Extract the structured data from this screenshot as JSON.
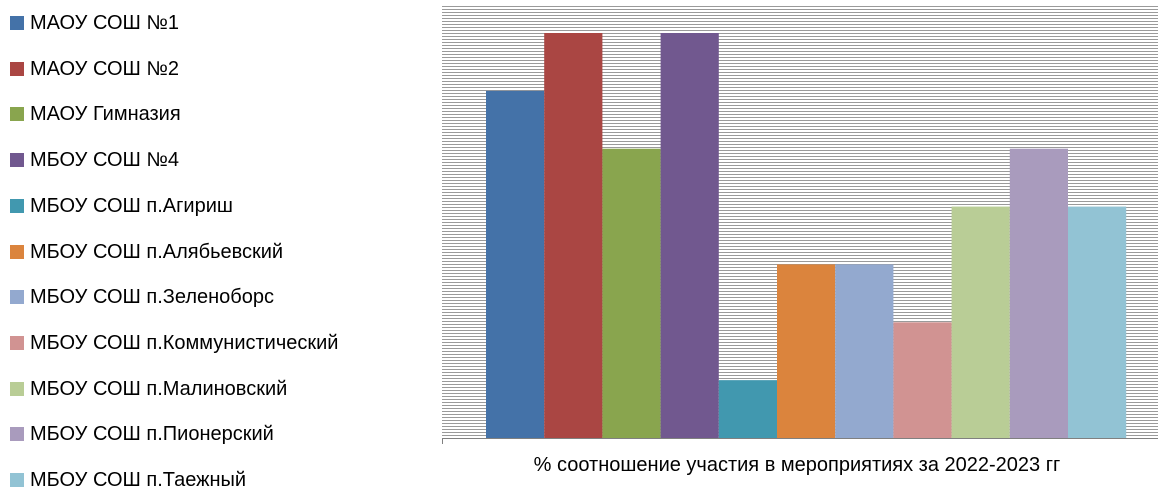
{
  "chart_data": {
    "type": "bar",
    "title": "",
    "xlabel": "% соотношение участия в мероприятиях за 2022-2023 гг",
    "ylabel": "",
    "ylim": [
      0,
      7
    ],
    "grid": true,
    "legend_position": "left",
    "series": [
      {
        "name": "МАОУ СОШ №1",
        "value": 6.0,
        "color": "#4472A8"
      },
      {
        "name": "МАОУ СОШ №2",
        "value": 7.0,
        "color": "#AA4643"
      },
      {
        "name": "МАОУ Гимназия",
        "value": 5.0,
        "color": "#89A54E"
      },
      {
        "name": "МБОУ СОШ №4",
        "value": 7.0,
        "color": "#71588F"
      },
      {
        "name": "МБОУ СОШ п.Агириш",
        "value": 1.0,
        "color": "#4198AF"
      },
      {
        "name": "МБОУ СОШ п.Алябьевский",
        "value": 3.0,
        "color": "#DB843D"
      },
      {
        "name": "МБОУ СОШ п.Зеленоборс",
        "value": 3.0,
        "color": "#93A9CF"
      },
      {
        "name": "МБОУ СОШ п.Коммунистический",
        "value": 2.0,
        "color": "#D19392"
      },
      {
        "name": "МБОУ СОШ п.Малиновский",
        "value": 4.0,
        "color": "#B9CD96"
      },
      {
        "name": "МБОУ СОШ п.Пионерский",
        "value": 5.0,
        "color": "#A99BBD"
      },
      {
        "name": "МБОУ СОШ п.Таежный",
        "value": 4.0,
        "color": "#92C3D4"
      }
    ]
  }
}
